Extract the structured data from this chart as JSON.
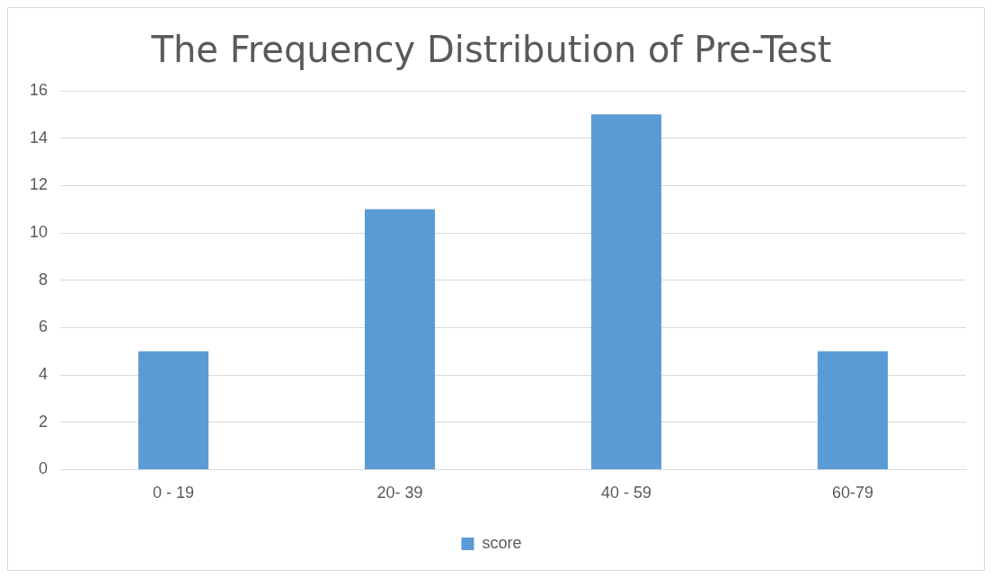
{
  "chart_data": {
    "type": "bar",
    "title": "The Frequency Distribution of Pre-Test",
    "categories": [
      "0 - 19",
      "20- 39",
      "40 - 59",
      "60-79"
    ],
    "series": [
      {
        "name": "score",
        "color": "#5b9bd5",
        "values": [
          5,
          11,
          15,
          5
        ]
      }
    ],
    "ylim": [
      0,
      16
    ],
    "yticks": [
      0,
      2,
      4,
      6,
      8,
      10,
      12,
      14,
      16
    ],
    "grid": "y",
    "legend": "bottom"
  }
}
